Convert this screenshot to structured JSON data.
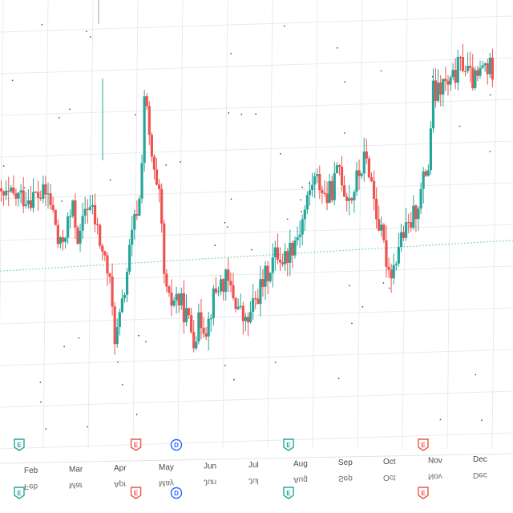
{
  "chart_data": {
    "type": "candlestick",
    "title": "",
    "xlabel": "",
    "ylabel": "",
    "grid": true,
    "legend": "none",
    "colors": {
      "up": "#26a69a",
      "down": "#ef5350",
      "grid": "#e8ebef",
      "baseline": "#8fd3c8",
      "axis_text": "#4a4a4a"
    },
    "x_axis": {
      "ticks": [
        "Feb",
        "Mar",
        "Apr",
        "May",
        "Jun",
        "Jul",
        "Aug",
        "Sep",
        "Oct",
        "Nov",
        "Dec"
      ]
    },
    "price_ylim": [
      0,
      100
    ],
    "baseline_level": 42.5,
    "events": [
      {
        "label": "E",
        "month": 0.5,
        "type": "earnings",
        "color": "#26a69a"
      },
      {
        "label": "E",
        "month": 3.1,
        "type": "earnings",
        "color": "#ef5350"
      },
      {
        "label": "D",
        "month": 4.0,
        "type": "dividend",
        "color": "#2962ff"
      },
      {
        "label": "E",
        "month": 6.5,
        "type": "earnings",
        "color": "#26a69a"
      },
      {
        "label": "E",
        "month": 9.5,
        "type": "earnings",
        "color": "#ef5350"
      }
    ],
    "anchors": [
      [
        0.5,
        60
      ],
      [
        0.65,
        54
      ],
      [
        0.75,
        46
      ],
      [
        0.9,
        52
      ],
      [
        1.05,
        56
      ],
      [
        1.2,
        48
      ],
      [
        1.35,
        58
      ],
      [
        1.5,
        55
      ],
      [
        1.7,
        46
      ],
      [
        1.85,
        40
      ],
      [
        2.0,
        24
      ],
      [
        2.15,
        32
      ],
      [
        2.3,
        44
      ],
      [
        2.45,
        54
      ],
      [
        2.55,
        58
      ],
      [
        2.65,
        84
      ],
      [
        2.75,
        72
      ],
      [
        2.9,
        60
      ],
      [
        3.0,
        56
      ],
      [
        3.1,
        36
      ],
      [
        3.2,
        32
      ],
      [
        3.35,
        34
      ],
      [
        3.55,
        30
      ],
      [
        3.75,
        24
      ],
      [
        3.9,
        28
      ],
      [
        4.05,
        26
      ],
      [
        4.15,
        32
      ],
      [
        4.3,
        36
      ],
      [
        4.45,
        37
      ],
      [
        4.6,
        34
      ],
      [
        4.75,
        30
      ],
      [
        4.9,
        26
      ],
      [
        5.0,
        28
      ],
      [
        5.15,
        33
      ],
      [
        5.3,
        36
      ],
      [
        5.45,
        40
      ],
      [
        5.6,
        43
      ],
      [
        5.75,
        41
      ],
      [
        5.9,
        44
      ],
      [
        6.1,
        48
      ],
      [
        6.25,
        54
      ],
      [
        6.4,
        60
      ],
      [
        6.55,
        59
      ],
      [
        6.7,
        55
      ],
      [
        6.85,
        58
      ],
      [
        7.0,
        63
      ],
      [
        7.1,
        57
      ],
      [
        7.25,
        55
      ],
      [
        7.4,
        60
      ],
      [
        7.55,
        64
      ],
      [
        7.65,
        62
      ],
      [
        7.8,
        52
      ],
      [
        7.95,
        44
      ],
      [
        8.1,
        37
      ],
      [
        8.2,
        38
      ],
      [
        8.35,
        45
      ],
      [
        8.5,
        46
      ],
      [
        8.65,
        50
      ],
      [
        8.8,
        55
      ],
      [
        8.9,
        60
      ],
      [
        9.0,
        62
      ],
      [
        9.05,
        80
      ],
      [
        9.15,
        78
      ],
      [
        9.3,
        81
      ],
      [
        9.45,
        80
      ],
      [
        9.6,
        84
      ],
      [
        9.75,
        86
      ],
      [
        9.9,
        82
      ],
      [
        10.05,
        81
      ],
      [
        10.2,
        85
      ],
      [
        10.3,
        84
      ]
    ]
  }
}
